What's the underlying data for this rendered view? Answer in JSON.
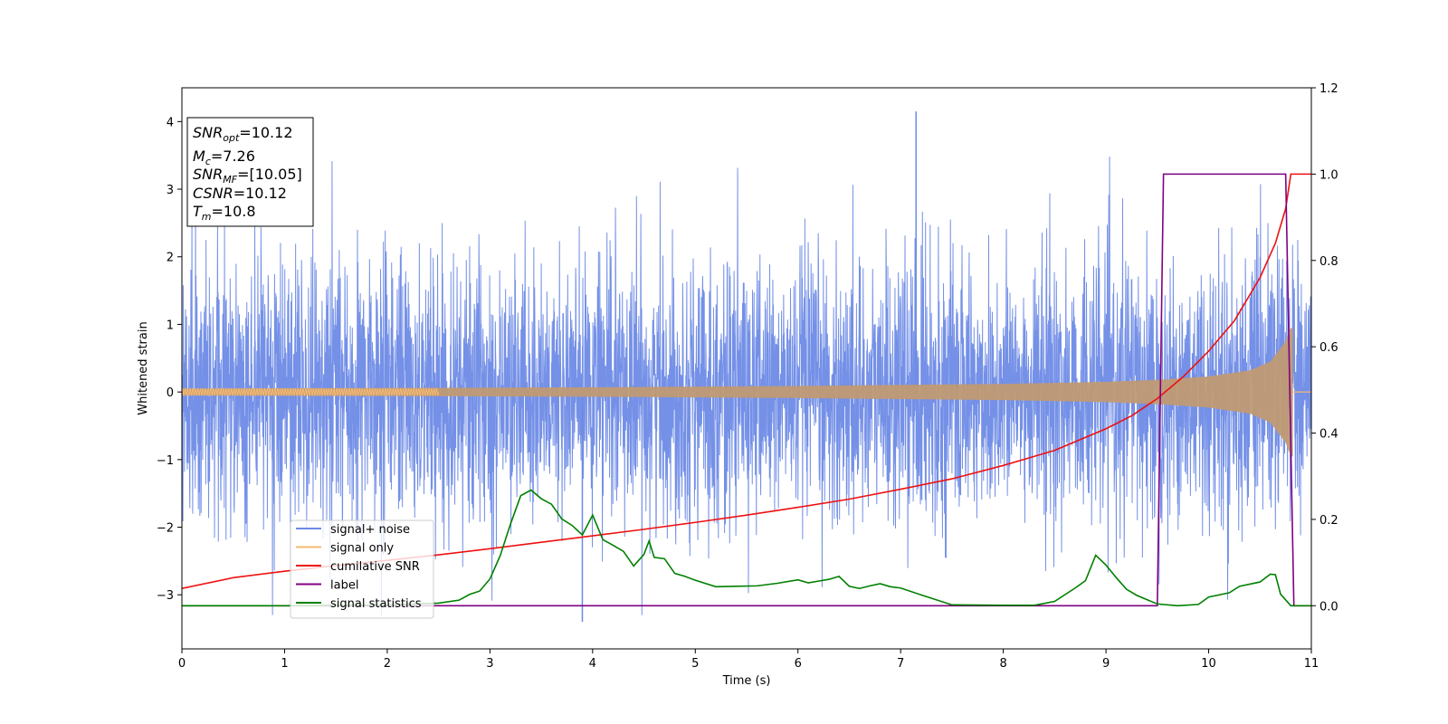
{
  "chart_data": {
    "type": "line",
    "xlabel": "Time (s)",
    "ylabel": "Whitened strain",
    "xlim": [
      0,
      11
    ],
    "ylim_left": [
      -3.8,
      4.5
    ],
    "ylim_right": [
      -0.1,
      1.2
    ],
    "xticks": [
      "0",
      "1",
      "2",
      "3",
      "4",
      "5",
      "6",
      "7",
      "8",
      "9",
      "10",
      "11"
    ],
    "yticks_left": [
      "−3",
      "−2",
      "−1",
      "0",
      "1",
      "2",
      "3",
      "4"
    ],
    "yticks_right": [
      "0.0",
      "0.2",
      "0.4",
      "0.6",
      "0.8",
      "1.0",
      "1.2"
    ],
    "grid": false,
    "legend_position": "lower-left",
    "info_box": {
      "snr_opt": "10.12",
      "mc": "7.26",
      "snr_mf": "[10.05]",
      "csnr": "10.12",
      "tm": "10.8"
    },
    "series": [
      {
        "name": "signal+ noise",
        "axis": "left",
        "color": "#6d8ae6",
        "description_type": "noise",
        "amplitude_std": 1.0,
        "notable_peaks": [
          {
            "x": 7.15,
            "y": 4.15
          },
          {
            "x": 3.9,
            "y": -3.4
          }
        ]
      },
      {
        "name": "signal only",
        "axis": "left",
        "color": "#f5b971",
        "description_type": "chirp",
        "envelope": {
          "x": [
            0,
            2,
            4,
            6,
            8,
            9,
            9.5,
            10,
            10.4,
            10.6,
            10.75,
            10.8
          ],
          "amp": [
            0.05,
            0.06,
            0.07,
            0.09,
            0.12,
            0.15,
            0.18,
            0.23,
            0.32,
            0.45,
            0.75,
            0.95
          ]
        }
      },
      {
        "name": "cumilative SNR",
        "axis": "right",
        "color": "#ee1111",
        "x": [
          0,
          0.5,
          1,
          1.5,
          2,
          2.5,
          3,
          3.5,
          4,
          4.5,
          5,
          5.5,
          6,
          6.5,
          7,
          7.5,
          8,
          8.5,
          9,
          9.25,
          9.5,
          9.75,
          10,
          10.25,
          10.5,
          10.65,
          10.75,
          10.8,
          10.85,
          11
        ],
        "y": [
          0.04,
          0.065,
          0.08,
          0.093,
          0.105,
          0.118,
          0.132,
          0.147,
          0.162,
          0.177,
          0.193,
          0.21,
          0.228,
          0.247,
          0.27,
          0.294,
          0.325,
          0.36,
          0.41,
          0.44,
          0.48,
          0.53,
          0.59,
          0.66,
          0.76,
          0.84,
          0.92,
          1.0,
          1.0,
          1.0
        ]
      },
      {
        "name": "label",
        "axis": "right",
        "color": "#800080",
        "x": [
          0,
          9.5,
          9.56,
          10.75,
          10.83,
          11
        ],
        "y": [
          0,
          0,
          1,
          1,
          0,
          0
        ]
      },
      {
        "name": "signal statistics",
        "axis": "right",
        "color": "#008000",
        "x": [
          0,
          1,
          2,
          2.5,
          2.7,
          2.8,
          2.9,
          3.0,
          3.1,
          3.2,
          3.3,
          3.4,
          3.5,
          3.6,
          3.7,
          3.8,
          3.9,
          4.0,
          4.1,
          4.2,
          4.3,
          4.4,
          4.5,
          4.55,
          4.6,
          4.7,
          4.8,
          4.9,
          5.0,
          5.2,
          5.4,
          5.6,
          5.8,
          6.0,
          6.1,
          6.2,
          6.3,
          6.4,
          6.5,
          6.6,
          6.7,
          6.8,
          6.9,
          7.0,
          7.2,
          7.5,
          8.0,
          8.3,
          8.5,
          8.7,
          8.8,
          8.9,
          9.0,
          9.1,
          9.2,
          9.3,
          9.5,
          9.7,
          9.9,
          10.0,
          10.2,
          10.3,
          10.5,
          10.6,
          10.65,
          10.7,
          10.8,
          10.9,
          11.0
        ],
        "y": [
          0.0,
          0.0,
          0.002,
          0.006,
          0.013,
          0.026,
          0.034,
          0.062,
          0.116,
          0.189,
          0.255,
          0.268,
          0.248,
          0.235,
          0.201,
          0.186,
          0.164,
          0.21,
          0.153,
          0.14,
          0.126,
          0.092,
          0.119,
          0.15,
          0.112,
          0.109,
          0.075,
          0.068,
          0.059,
          0.044,
          0.045,
          0.046,
          0.052,
          0.06,
          0.053,
          0.057,
          0.061,
          0.068,
          0.045,
          0.04,
          0.046,
          0.051,
          0.044,
          0.041,
          0.025,
          0.002,
          0.001,
          0.001,
          0.01,
          0.041,
          0.058,
          0.117,
          0.094,
          0.065,
          0.038,
          0.024,
          0.004,
          0.0,
          0.003,
          0.02,
          0.03,
          0.045,
          0.055,
          0.073,
          0.072,
          0.027,
          0.0,
          0.0,
          0.0
        ]
      }
    ]
  }
}
